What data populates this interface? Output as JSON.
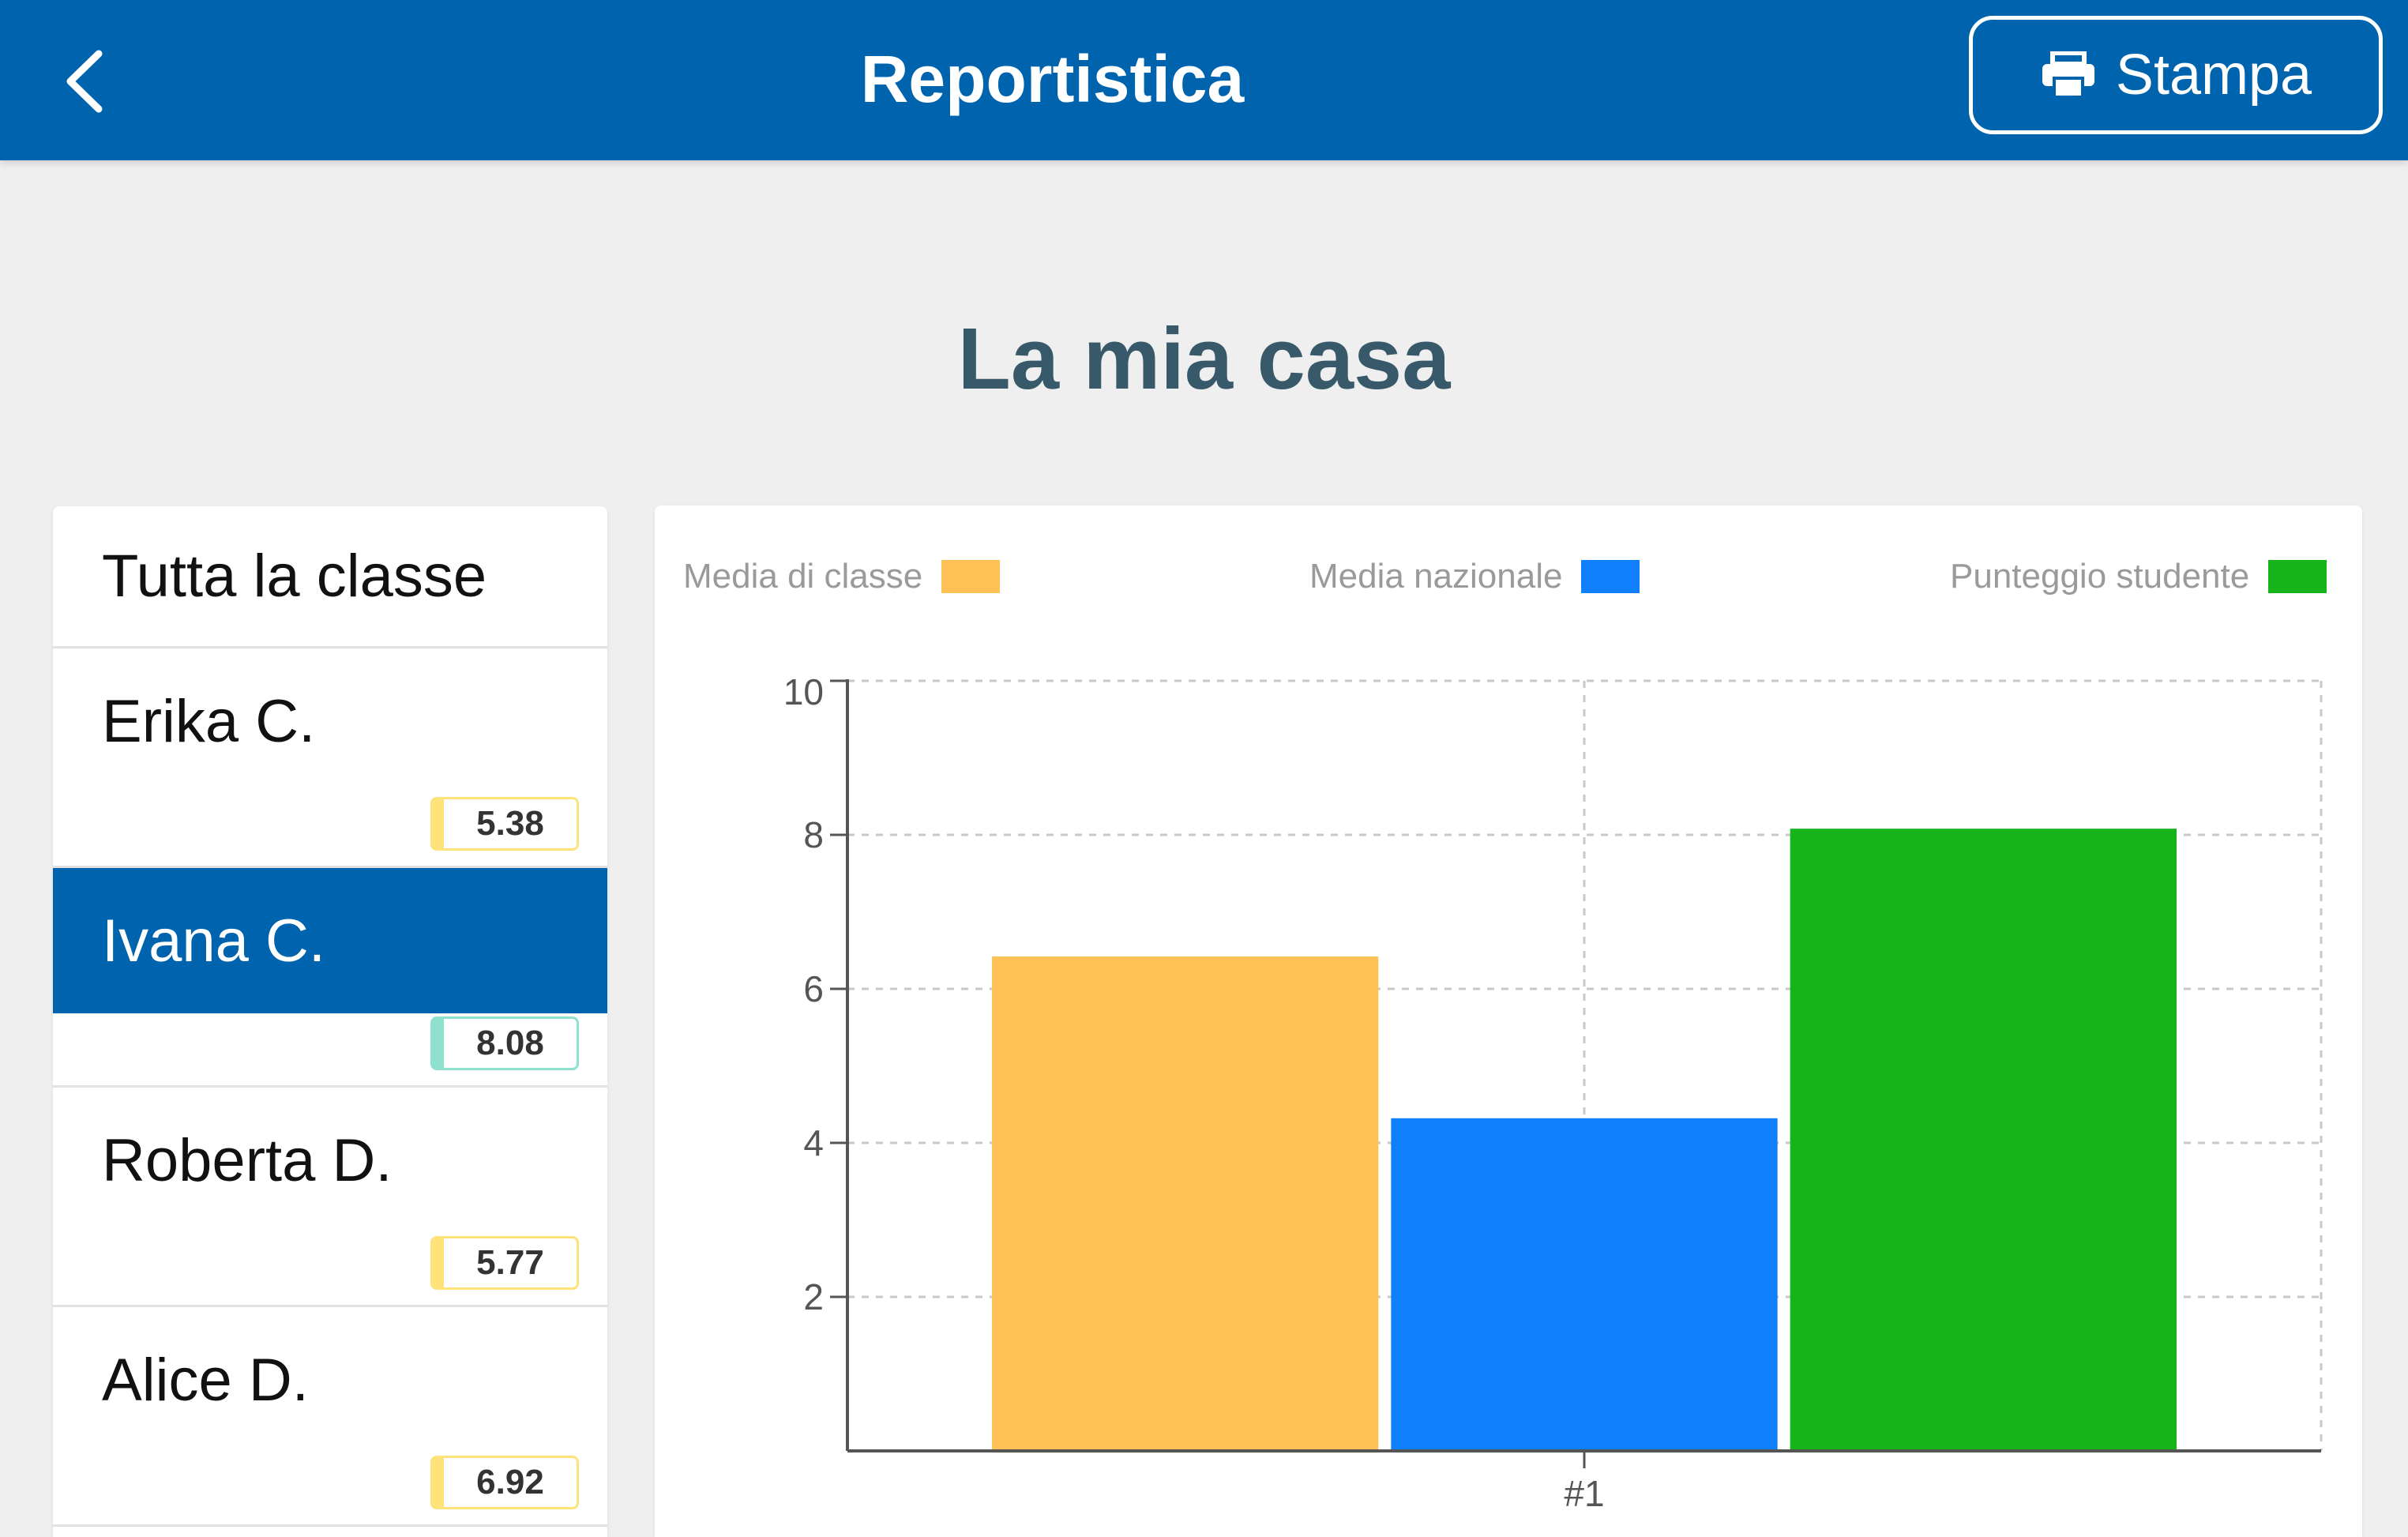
{
  "header": {
    "title": "Reportistica",
    "print_label": "Stampa",
    "back_icon": "chevron-left-icon",
    "print_icon": "printer-icon",
    "background": "#0063ad"
  },
  "page": {
    "title": "La mia casa"
  },
  "sidebar": {
    "class_label": "Tutta la classe",
    "students": [
      {
        "name": "Erika C.",
        "score": "5.38",
        "selected": false
      },
      {
        "name": "Ivana C.",
        "score": "8.08",
        "selected": true
      },
      {
        "name": "Roberta D.",
        "score": "5.77",
        "selected": false
      },
      {
        "name": "Alice D.",
        "score": "6.92",
        "selected": false
      }
    ]
  },
  "chart_data": {
    "type": "bar",
    "categories": [
      "#1"
    ],
    "series": [
      {
        "name": "Media di classe",
        "values": [
          6.42
        ],
        "color": "#ffc155"
      },
      {
        "name": "Media nazionale",
        "values": [
          4.32
        ],
        "color": "#0f7ffb"
      },
      {
        "name": "Punteggio studente",
        "values": [
          8.08
        ],
        "color": "#17b31b"
      }
    ],
    "yticks": [
      2,
      4,
      6,
      8,
      10
    ],
    "ylim": [
      0,
      10
    ],
    "grid": true,
    "legend_position": "top"
  }
}
